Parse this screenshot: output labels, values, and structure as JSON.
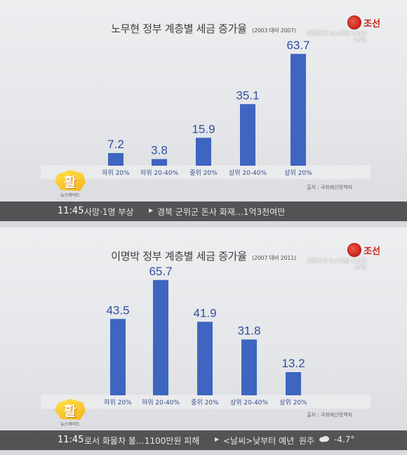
{
  "broadcaster": {
    "name": "조선",
    "channel_text": "대한민국 뉴스채널 Ch19",
    "live": "LIVE"
  },
  "show": {
    "badge_glyph": "활",
    "name": "뉴스와이드"
  },
  "source_text": "출처 : 국회예산정책처",
  "panels": [
    {
      "ticker": {
        "time": "11:45",
        "items": [
          "사망·1명 부상",
          "경북 군위군 돈사 화재…1억3천여만"
        ]
      }
    },
    {
      "ticker": {
        "time": "11:45",
        "items": [
          "로서 화물차 불…1100만원 피해",
          "<날씨>낮부터 예년",
          "원주",
          "-4.7°"
        ]
      }
    }
  ],
  "chart_data": [
    {
      "type": "bar",
      "title": "노무현 정부 계층별 세금 증가율",
      "subtitle": "(2003 대비 2007)",
      "categories": [
        "하위 20%",
        "하위 20-40%",
        "중위 20%",
        "상위 20-40%",
        "상위 20%"
      ],
      "values": [
        7.2,
        3.8,
        15.9,
        35.1,
        63.7
      ],
      "bar_color": "#3e65bf",
      "ylim": [
        0,
        70
      ]
    },
    {
      "type": "bar",
      "title": "이명박 정부 계층별 세금 증가율",
      "subtitle": "(2007 대비 2011)",
      "categories": [
        "하위 20%",
        "하위 20-40%",
        "중위 20%",
        "상위 20-40%",
        "상위 20%"
      ],
      "values": [
        43.5,
        65.7,
        41.9,
        31.8,
        13.2
      ],
      "bar_color": "#3e65bf",
      "ylim": [
        0,
        70
      ]
    }
  ]
}
